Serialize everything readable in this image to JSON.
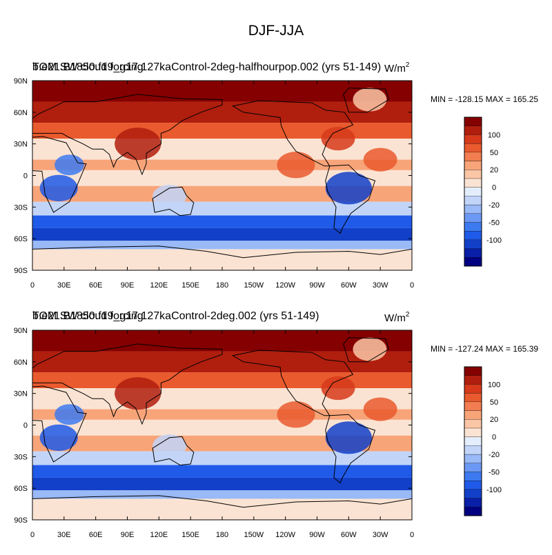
{
  "title": "DJF-JJA",
  "colors": {
    "levels": [
      "#000080",
      "#0a1fa8",
      "#1240c8",
      "#1f5ae8",
      "#3d7af0",
      "#6b98f4",
      "#99b9f7",
      "#c2d5f9",
      "#e3edfb",
      "#fbe3d3",
      "#fbc6a6",
      "#f8a479",
      "#f27d50",
      "#e95a2e",
      "#d63a1a",
      "#b01e0e",
      "#850000"
    ],
    "land": "#000000"
  },
  "chart_data": [
    {
      "type": "heatmap",
      "title_overlapped": [
        "TOM SW cloud forcing",
        "b.e21.B1850.f19_g17.127kaControl-2deg-halfhourpop.002 (yrs 51-149)"
      ],
      "units": "W/m",
      "units_sup": "2",
      "min_max": "MIN = -128.15 MAX = 165.25",
      "x_ticks": [
        "0",
        "30E",
        "60E",
        "90E",
        "120E",
        "150E",
        "180",
        "150W",
        "120W",
        "90W",
        "60W",
        "30W",
        "0"
      ],
      "y_ticks": [
        "90N",
        "60N",
        "30N",
        "0",
        "30S",
        "60S",
        "90S"
      ],
      "colorbar_labels": [
        "100",
        "50",
        "20",
        "0",
        "-20",
        "-50",
        "-100"
      ],
      "bands": [
        {
          "lat": [
            90,
            70
          ],
          "value": 110
        },
        {
          "lat": [
            70,
            50
          ],
          "value": 80
        },
        {
          "lat": [
            50,
            35
          ],
          "value": 35
        },
        {
          "lat": [
            35,
            15
          ],
          "value": -5
        },
        {
          "lat": [
            15,
            5
          ],
          "value": 15
        },
        {
          "lat": [
            5,
            -10
          ],
          "value": -10
        },
        {
          "lat": [
            -10,
            -25
          ],
          "value": 10
        },
        {
          "lat": [
            -25,
            -38
          ],
          "value": -25
        },
        {
          "lat": [
            -38,
            -50
          ],
          "value": -70
        },
        {
          "lat": [
            -50,
            -62
          ],
          "value": -95
        },
        {
          "lat": [
            -62,
            -70
          ],
          "value": -40
        },
        {
          "lat": [
            -70,
            -90
          ],
          "value": -8
        }
      ]
    },
    {
      "type": "heatmap",
      "title_overlapped": [
        "TOM SW cloud forcing",
        "b.e21.B1850.f19_g17.127kaControl-2deg.002 (yrs 51-149)"
      ],
      "units": "W/m",
      "units_sup": "2",
      "min_max": "MIN = -127.24 MAX = 165.39",
      "x_ticks": [
        "0",
        "30E",
        "60E",
        "90E",
        "120E",
        "150E",
        "180",
        "150W",
        "120W",
        "90W",
        "60W",
        "30W",
        "0"
      ],
      "y_ticks": [
        "90N",
        "60N",
        "30N",
        "0",
        "30S",
        "60S",
        "90S"
      ],
      "colorbar_labels": [
        "100",
        "50",
        "20",
        "0",
        "-20",
        "-50",
        "-100"
      ],
      "bands": [
        {
          "lat": [
            90,
            70
          ],
          "value": 110
        },
        {
          "lat": [
            70,
            50
          ],
          "value": 80
        },
        {
          "lat": [
            50,
            35
          ],
          "value": 35
        },
        {
          "lat": [
            35,
            15
          ],
          "value": -5
        },
        {
          "lat": [
            15,
            5
          ],
          "value": 15
        },
        {
          "lat": [
            5,
            -10
          ],
          "value": -10
        },
        {
          "lat": [
            -10,
            -25
          ],
          "value": 10
        },
        {
          "lat": [
            -25,
            -38
          ],
          "value": -25
        },
        {
          "lat": [
            -38,
            -50
          ],
          "value": -70
        },
        {
          "lat": [
            -50,
            -62
          ],
          "value": -95
        },
        {
          "lat": [
            -62,
            -70
          ],
          "value": -40
        },
        {
          "lat": [
            -70,
            -90
          ],
          "value": -8
        }
      ]
    }
  ]
}
